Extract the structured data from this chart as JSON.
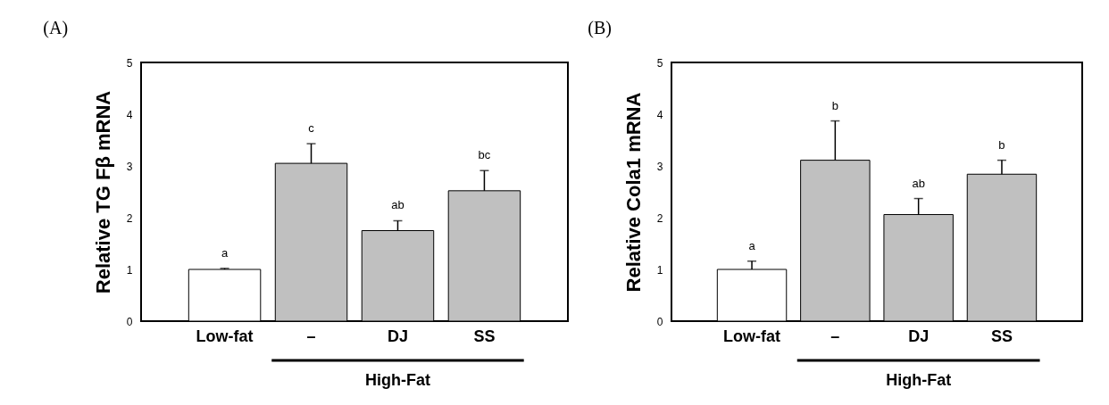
{
  "chart_data": [
    {
      "type": "bar",
      "title": "(A)",
      "ylabel": "Relative TG Fβ mRNA",
      "categories": [
        "Low-fat",
        "–",
        "DJ",
        "SS"
      ],
      "values": [
        1.0,
        3.05,
        1.75,
        2.52
      ],
      "colors": [
        "#ffffff",
        "#c0c0c0",
        "#c0c0c0",
        "#c0c0c0"
      ],
      "errors": [
        [
          1.0,
          1.02
        ],
        [
          3.05,
          3.43
        ],
        [
          1.75,
          1.94
        ],
        [
          2.52,
          2.91
        ]
      ],
      "ylim": [
        0,
        5
      ],
      "yticks": [
        0,
        1,
        2,
        3,
        4,
        5
      ],
      "grid": false,
      "annotations": [
        {
          "text": "a",
          "x": "Low-fat",
          "y": 1.02
        },
        {
          "text": "c",
          "x": "–",
          "y": 3.43
        },
        {
          "text": "ab",
          "x": "DJ",
          "y": 1.94
        },
        {
          "text": "bc",
          "x": "SS",
          "y": 2.91
        },
        "High-Fat"
      ]
    },
    {
      "type": "bar",
      "title": "(B)",
      "ylabel": "Relative Cola1 mRNA",
      "categories": [
        "Low-fat",
        "–",
        "DJ",
        "SS"
      ],
      "values": [
        1.0,
        3.11,
        2.06,
        2.84
      ],
      "colors": [
        "#ffffff",
        "#c0c0c0",
        "#c0c0c0",
        "#c0c0c0"
      ],
      "errors": [
        [
          1.0,
          1.16
        ],
        [
          3.11,
          3.87
        ],
        [
          2.06,
          2.37
        ],
        [
          2.84,
          3.11
        ]
      ],
      "ylim": [
        0,
        5
      ],
      "yticks": [
        0,
        1,
        2,
        3,
        4,
        5
      ],
      "grid": false,
      "annotations": [
        {
          "text": "a",
          "x": "Low-fat",
          "y": 1.16
        },
        {
          "text": "b",
          "x": "–",
          "y": 3.87
        },
        {
          "text": "ab",
          "x": "DJ",
          "y": 2.37
        },
        {
          "text": "b",
          "x": "SS",
          "y": 3.11
        },
        "High-Fat"
      ]
    }
  ]
}
